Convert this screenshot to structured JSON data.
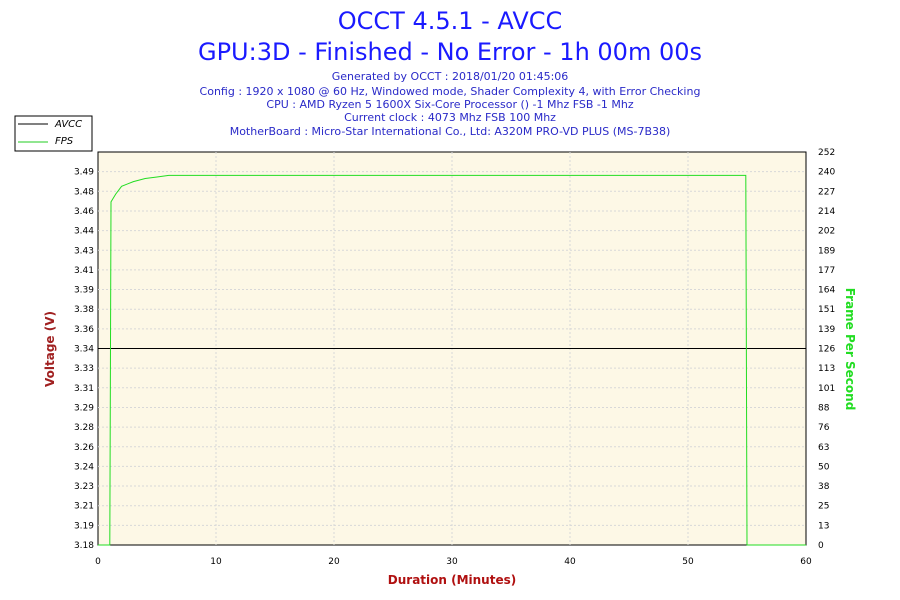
{
  "header": {
    "title": "OCCT 4.5.1 - AVCC",
    "subtitle": "GPU:3D - Finished - No Error - 1h 00m 00s",
    "info_lines": [
      "Generated by OCCT : 2018/01/20 01:45:06",
      "Config : 1920 x 1080 @ 60 Hz, Windowed mode, Shader Complexity 4, with Error Checking",
      "CPU : AMD Ryzen 5 1600X Six-Core Processor () -1 Mhz FSB -1 Mhz",
      "Current clock : 4073 Mhz FSB 100 Mhz",
      "MotherBoard : Micro-Star International Co., Ltd: A320M PRO-VD PLUS (MS-7B38)"
    ]
  },
  "legend": [
    {
      "label": "AVCC",
      "color": "#000000"
    },
    {
      "label": "FPS",
      "color": "#22cc22"
    }
  ],
  "colors": {
    "plot_background": "#fdf8e6",
    "grid": "#d8d8d8",
    "avcc_line": "#000000",
    "fps_line": "#22dd22"
  },
  "chart_data": {
    "type": "line",
    "xlabel": "Duration (Minutes)",
    "ylabel": "Voltage (V)",
    "ylabel_right": "Frame Per Second",
    "xlim": [
      0,
      60
    ],
    "ylim": [
      3.18,
      3.5
    ],
    "ylim_right": [
      0,
      252
    ],
    "x_ticks": [
      "0",
      "10",
      "20",
      "30",
      "40",
      "50",
      "60"
    ],
    "y_ticks": [
      "3.18",
      "3.19",
      "3.21",
      "3.23",
      "3.24",
      "3.26",
      "3.28",
      "3.29",
      "3.31",
      "3.33",
      "3.34",
      "3.36",
      "3.38",
      "3.39",
      "3.41",
      "3.43",
      "3.44",
      "3.46",
      "3.48",
      "3.49"
    ],
    "y_ticks_right": [
      "0",
      "13",
      "25",
      "38",
      "50",
      "63",
      "76",
      "88",
      "101",
      "113",
      "126",
      "139",
      "151",
      "164",
      "177",
      "189",
      "202",
      "214",
      "227",
      "240",
      "252"
    ],
    "grid": true,
    "legend_position": "top-left",
    "series": [
      {
        "name": "AVCC",
        "axis": "left",
        "x": [
          0,
          60
        ],
        "y": [
          3.34,
          3.34
        ]
      },
      {
        "name": "FPS",
        "axis": "right",
        "x": [
          0,
          1,
          1.1,
          1.5,
          2,
          3,
          4,
          5,
          6,
          10,
          20,
          30,
          40,
          50,
          54.9,
          55,
          55.1,
          60
        ],
        "y": [
          0,
          0,
          220,
          225,
          230,
          233,
          235,
          236,
          237,
          237,
          237,
          237,
          237,
          237,
          237,
          0,
          0,
          0
        ]
      }
    ]
  }
}
